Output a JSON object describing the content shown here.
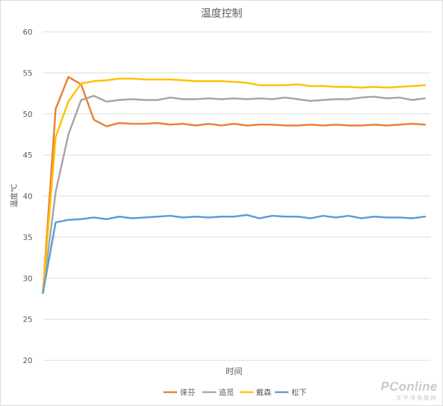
{
  "chart_data": {
    "type": "line",
    "title": "温度控制",
    "xlabel": "时间",
    "ylabel": "温度℃",
    "ylim": [
      20,
      60
    ],
    "yticks": [
      20,
      25,
      30,
      35,
      40,
      45,
      50,
      55,
      60
    ],
    "grid": true,
    "legend_position": "bottom",
    "series": [
      {
        "name": "徕芬",
        "color": "#ed7d31",
        "values": [
          28.2,
          50.6,
          54.5,
          53.6,
          49.3,
          48.5,
          48.9,
          48.8,
          48.8,
          48.9,
          48.7,
          48.8,
          48.6,
          48.8,
          48.6,
          48.8,
          48.6,
          48.7,
          48.7,
          48.6,
          48.6,
          48.7,
          48.6,
          48.7,
          48.6,
          48.6,
          48.7,
          48.6,
          48.7,
          48.8,
          48.7
        ]
      },
      {
        "name": "追觅",
        "color": "#a5a5a5",
        "values": [
          28.2,
          40.5,
          47.5,
          51.7,
          52.2,
          51.5,
          51.7,
          51.8,
          51.7,
          51.7,
          52.0,
          51.8,
          51.8,
          51.9,
          51.8,
          51.9,
          51.8,
          51.9,
          51.8,
          52.0,
          51.8,
          51.6,
          51.7,
          51.8,
          51.8,
          52.0,
          52.1,
          51.9,
          52.0,
          51.7,
          51.9
        ]
      },
      {
        "name": "戴森",
        "color": "#ffc000",
        "values": [
          28.2,
          47.2,
          51.5,
          53.7,
          54.0,
          54.1,
          54.3,
          54.3,
          54.2,
          54.2,
          54.2,
          54.1,
          54.0,
          54.0,
          54.0,
          53.9,
          53.8,
          53.5,
          53.5,
          53.5,
          53.6,
          53.4,
          53.4,
          53.3,
          53.3,
          53.2,
          53.3,
          53.2,
          53.3,
          53.4,
          53.5
        ]
      },
      {
        "name": "松下",
        "color": "#5b9bd5",
        "values": [
          28.2,
          36.8,
          37.1,
          37.2,
          37.4,
          37.2,
          37.5,
          37.3,
          37.4,
          37.5,
          37.6,
          37.4,
          37.5,
          37.4,
          37.5,
          37.5,
          37.7,
          37.3,
          37.6,
          37.5,
          37.5,
          37.3,
          37.6,
          37.4,
          37.6,
          37.3,
          37.5,
          37.4,
          37.4,
          37.3,
          37.5
        ]
      }
    ]
  },
  "watermark": {
    "main": "PConline",
    "sub": "太平洋电脑网"
  }
}
